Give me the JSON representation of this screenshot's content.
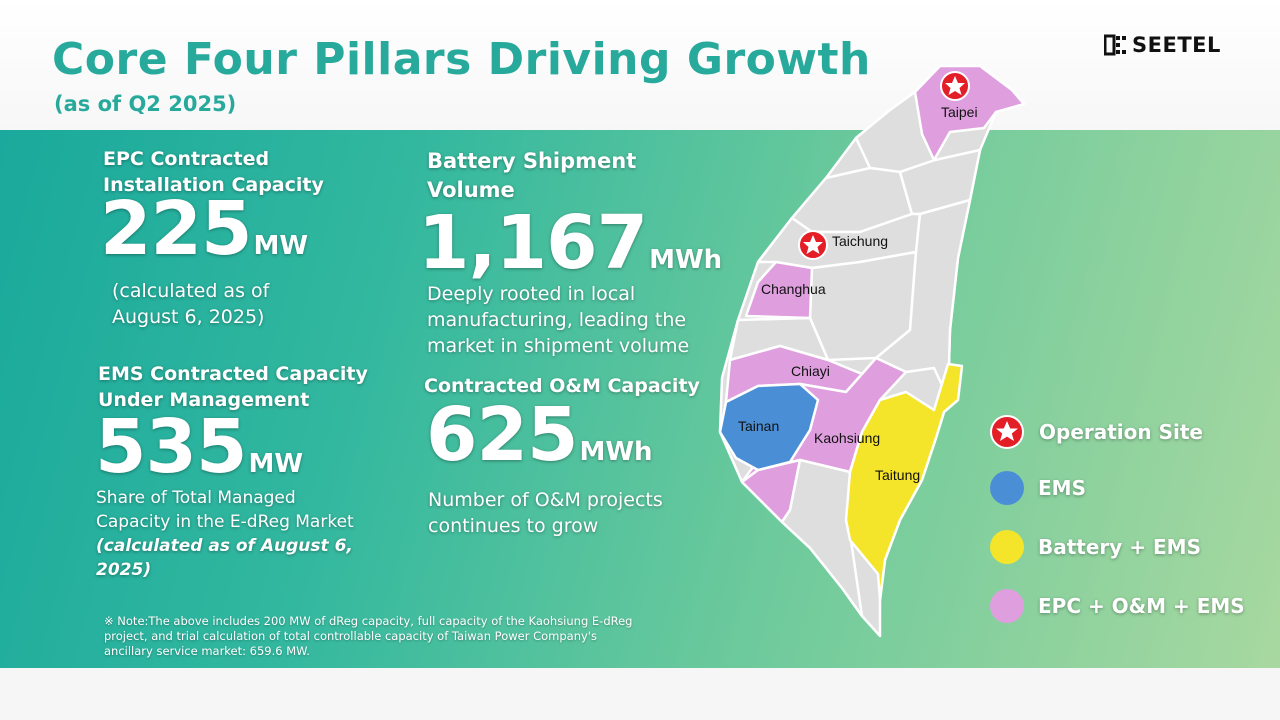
{
  "header": {
    "title": "Core Four Pillars Driving Growth",
    "subtitle": "(as of Q2 2025)",
    "logo_text": "SEETEL"
  },
  "pillars": {
    "epc": {
      "label_line1": "EPC Contracted",
      "label_line2": "Installation Capacity",
      "value": "225",
      "unit": "MW",
      "desc_line1": "(calculated as of",
      "desc_line2": "August 6, 2025)"
    },
    "battery": {
      "label_line1": "Battery Shipment",
      "label_line2": "Volume",
      "value": "1,167",
      "unit": "MWh",
      "desc_line1": "Deeply rooted in local",
      "desc_line2": "manufacturing, leading the",
      "desc_line3": "market in shipment volume"
    },
    "ems": {
      "label_line1": "EMS Contracted Capacity",
      "label_line2": "Under Management",
      "value": "535",
      "unit": "MW",
      "desc_line1": "Share of Total Managed",
      "desc_line2": "Capacity in the E-dReg Market",
      "desc_line3": "(calculated as of August 6,",
      "desc_line4": "2025)"
    },
    "om": {
      "label": "Contracted O&M Capacity",
      "value": "625",
      "unit": "MWh",
      "desc_line1": "Number of O&M projects",
      "desc_line2": "continues to grow"
    }
  },
  "note": {
    "line1": "※ Note:The above includes 200 MW of dReg capacity, full capacity of the Kaohsiung E-dReg",
    "line2": "project, and trial calculation of total controllable capacity of Taiwan Power Company's",
    "line3": "ancillary service market: 659.6 MW."
  },
  "map": {
    "cities": {
      "taipei": "Taipei",
      "taichung": "Taichung",
      "changhua": "Changhua",
      "chiayi": "Chiayi",
      "tainan": "Tainan",
      "kaohsiung": "Kaohsiung",
      "taitung": "Taitung"
    },
    "colors": {
      "base": "#dedede",
      "border": "#ffffff",
      "ems": "#4a8fd6",
      "battery_ems": "#f5e52a",
      "epc_om_ems": "#df9fdf",
      "operation_site": "#e41e26"
    }
  },
  "legend": {
    "operation_site": "Operation Site",
    "ems": "EMS",
    "battery_ems": "Battery + EMS",
    "epc_om_ems": "EPC + O&M + EMS"
  }
}
